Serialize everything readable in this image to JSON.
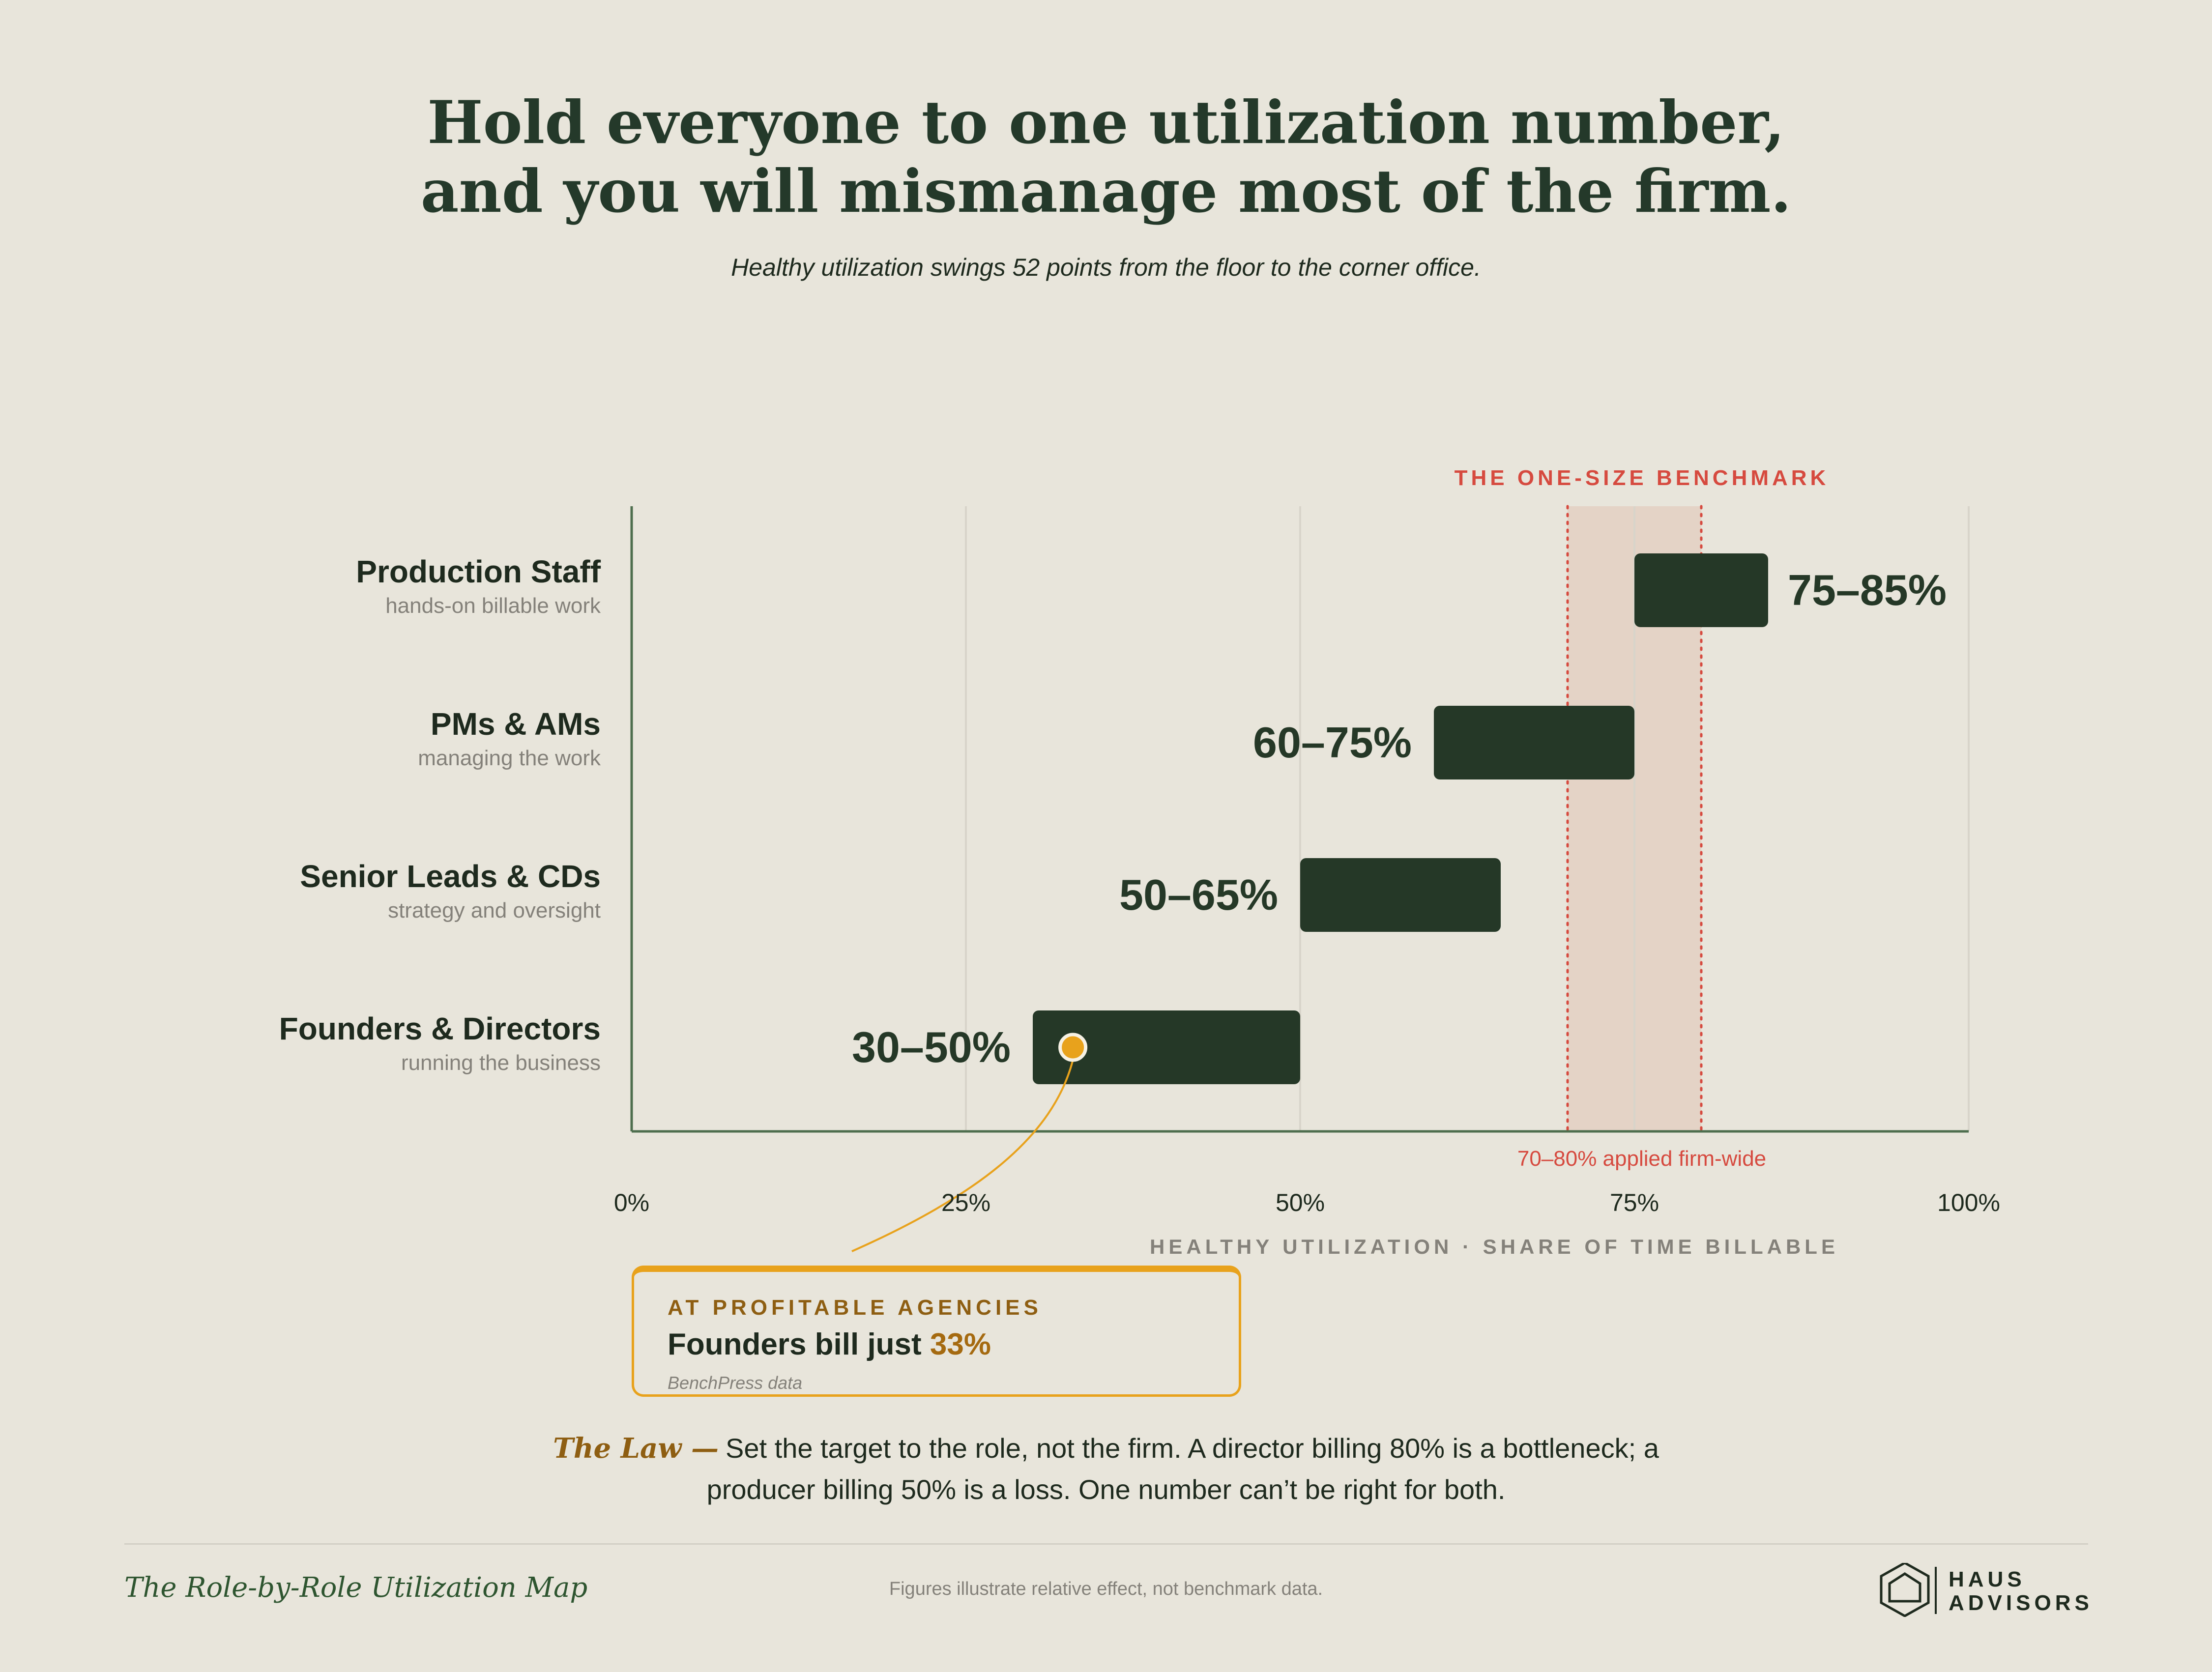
{
  "header": {
    "title_line1": "Hold everyone to one utilization number,",
    "title_line2": "and you will mismanage most of the firm.",
    "subtitle": "Healthy utilization swings 52 points from the floor to the corner office."
  },
  "benchmark": {
    "title": "THE ONE-SIZE BENCHMARK",
    "note": "70–80% applied firm-wide",
    "range": [
      70,
      80
    ]
  },
  "roles": [
    {
      "name": "Production Staff",
      "desc": "hands-on billable work"
    },
    {
      "name": "PMs & AMs",
      "desc": "managing the work"
    },
    {
      "name": "Senior Leads & CDs",
      "desc": "strategy and oversight"
    },
    {
      "name": "Founders & Directors",
      "desc": "running the business"
    }
  ],
  "axis": {
    "ticks": [
      "0%",
      "25%",
      "50%",
      "75%",
      "100%"
    ],
    "title": "HEALTHY UTILIZATION · SHARE OF TIME BILLABLE"
  },
  "chart_data": {
    "type": "bar",
    "orientation": "horizontal-range",
    "title": "Hold everyone to one utilization number, and you will mismanage most of the firm.",
    "subtitle": "Healthy utilization swings 52 points from the floor to the corner office.",
    "categories": [
      "Production Staff",
      "PMs & AMs",
      "Senior Leads & CDs",
      "Founders & Directors"
    ],
    "ranges": [
      [
        75,
        85
      ],
      [
        60,
        75
      ],
      [
        50,
        65
      ],
      [
        30,
        50
      ]
    ],
    "labels": [
      "75–85%",
      "60–75%",
      "50–65%",
      "30–50%"
    ],
    "label_side": [
      "right",
      "left",
      "left",
      "left"
    ],
    "xlabel": "HEALTHY UTILIZATION · SHARE OF TIME BILLABLE",
    "xlim": [
      0,
      100
    ],
    "xticks": [
      0,
      25,
      50,
      75,
      100
    ],
    "grid": true,
    "benchmark_band": [
      70,
      80
    ],
    "highlight_point": {
      "category": "Founders & Directors",
      "value": 33
    }
  },
  "callout": {
    "kicker": "AT PROFITABLE AGENCIES",
    "text": "Founders bill just ",
    "value": "33%",
    "source": "BenchPress data"
  },
  "law": {
    "label": "The Law —",
    "text": "Set the target to the role, not the firm. A director billing 80% is a bottleneck; a producer billing 50% is a loss. One number can’t be right for both."
  },
  "footer": {
    "title": "The Role-by-Role Utilization Map",
    "note": "Figures illustrate relative effect, not benchmark data.",
    "brand_line1": "HAUS",
    "brand_line2": "ADVISORS"
  },
  "colors": {
    "background": "#E8E5DB",
    "bar": "#253827",
    "axis": "#4E6E4E",
    "grid": "#D8D4CA",
    "benchmark_band": "#E4D3C6",
    "benchmark_line": "#D64A3F",
    "accent": "#E8A21C",
    "accent_dark": "#8E5E12"
  }
}
